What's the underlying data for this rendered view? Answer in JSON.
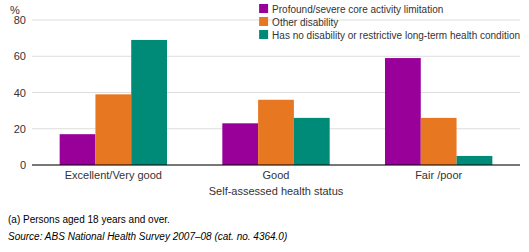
{
  "chart_data": {
    "type": "bar",
    "categories": [
      "Excellent/Very good",
      "Good",
      "Fair /poor"
    ],
    "series": [
      {
        "name": "Profound/severe core activity limitation",
        "color": "#990099",
        "values": [
          17,
          23,
          59
        ]
      },
      {
        "name": "Other disability",
        "color": "#E87722",
        "values": [
          39,
          36,
          26
        ]
      },
      {
        "name": "Has no disability or restrictive long-term health condition",
        "color": "#008B78",
        "values": [
          69,
          26,
          5
        ]
      }
    ],
    "xlabel": "Self-assessed health status",
    "ylabel": "%",
    "ylim": [
      0,
      80
    ],
    "yticks": [
      0,
      20,
      40,
      60,
      80
    ],
    "grid": true,
    "legend": "upper right",
    "annotations": [
      "(a) Persons aged 18 years and over.",
      "Source: ABS National Health Survey 2007–08 (cat. no. 4364.0)"
    ]
  }
}
